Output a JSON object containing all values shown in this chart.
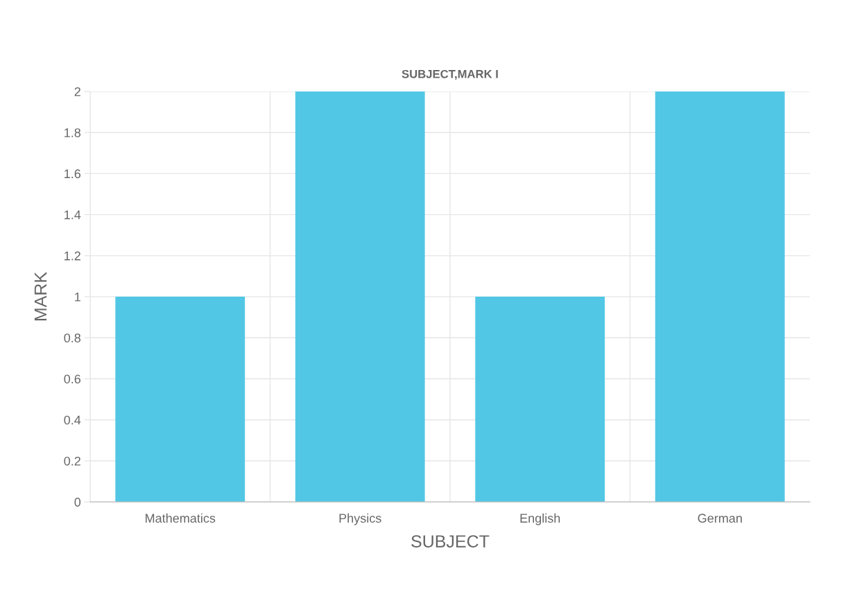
{
  "chart_data": {
    "type": "bar",
    "title": "SUBJECT,MARK I",
    "xlabel": "SUBJECT",
    "ylabel": "MARK",
    "categories": [
      "Mathematics",
      "Physics",
      "English",
      "German"
    ],
    "values": [
      1,
      2,
      1,
      2
    ],
    "color": "#52c7e5",
    "ylim": [
      0,
      2
    ],
    "yticks": [
      0,
      0.2,
      0.4,
      0.6,
      0.8,
      1,
      1.2,
      1.4,
      1.6,
      1.8,
      2
    ],
    "grid": true
  }
}
